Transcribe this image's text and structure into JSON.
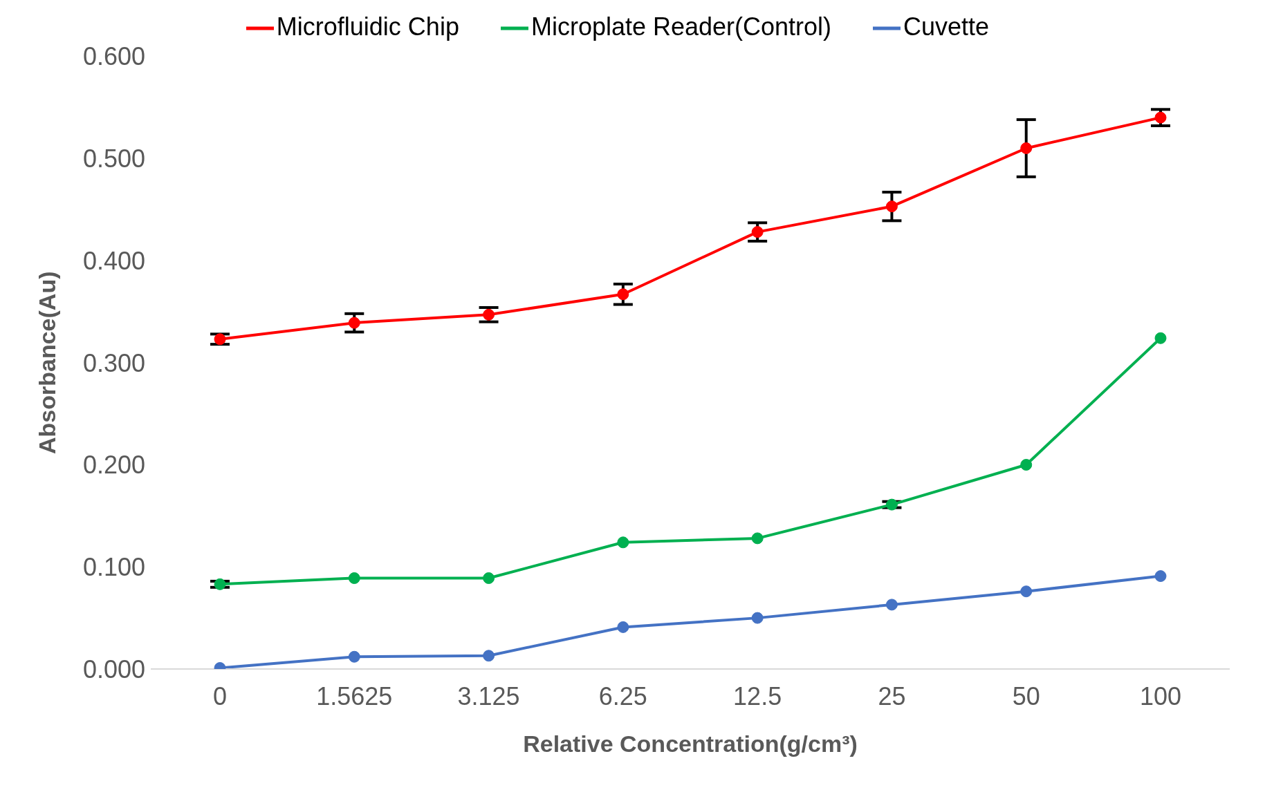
{
  "chart_data": {
    "type": "line",
    "xlabel": "Relative Concentration(g/cm³)",
    "ylabel": "Absorbance(Au)",
    "categories": [
      "0",
      "1.5625",
      "3.125",
      "6.25",
      "12.5",
      "25",
      "50",
      "100"
    ],
    "series": [
      {
        "name": "Microfluidic Chip",
        "color": "#ff0000",
        "values": [
          0.323,
          0.339,
          0.347,
          0.367,
          0.428,
          0.453,
          0.51,
          0.54
        ],
        "errors": [
          0.005,
          0.009,
          0.007,
          0.01,
          0.009,
          0.014,
          0.028,
          0.008
        ]
      },
      {
        "name": "Microplate Reader(Control)",
        "color": "#00b050",
        "values": [
          0.083,
          0.089,
          0.089,
          0.124,
          0.128,
          0.161,
          0.2,
          0.324
        ],
        "errors": [
          0.003,
          null,
          null,
          null,
          null,
          0.003,
          null,
          null
        ]
      },
      {
        "name": "Cuvette",
        "color": "#4472c4",
        "values": [
          0.001,
          0.012,
          0.013,
          0.041,
          0.05,
          0.063,
          0.076,
          0.091
        ]
      }
    ],
    "ylim": [
      0,
      0.6
    ],
    "yticks": [
      {
        "value": 0,
        "label": "0.000"
      },
      {
        "value": 0.1,
        "label": "0.100"
      },
      {
        "value": 0.2,
        "label": "0.200"
      },
      {
        "value": 0.3,
        "label": "0.300"
      },
      {
        "value": 0.4,
        "label": "0.400"
      },
      {
        "value": 0.5,
        "label": "0.500"
      },
      {
        "value": 0.6,
        "label": "0.600"
      }
    ],
    "grid": false,
    "legend": "top",
    "marker": "circle",
    "line_style": "solid"
  }
}
